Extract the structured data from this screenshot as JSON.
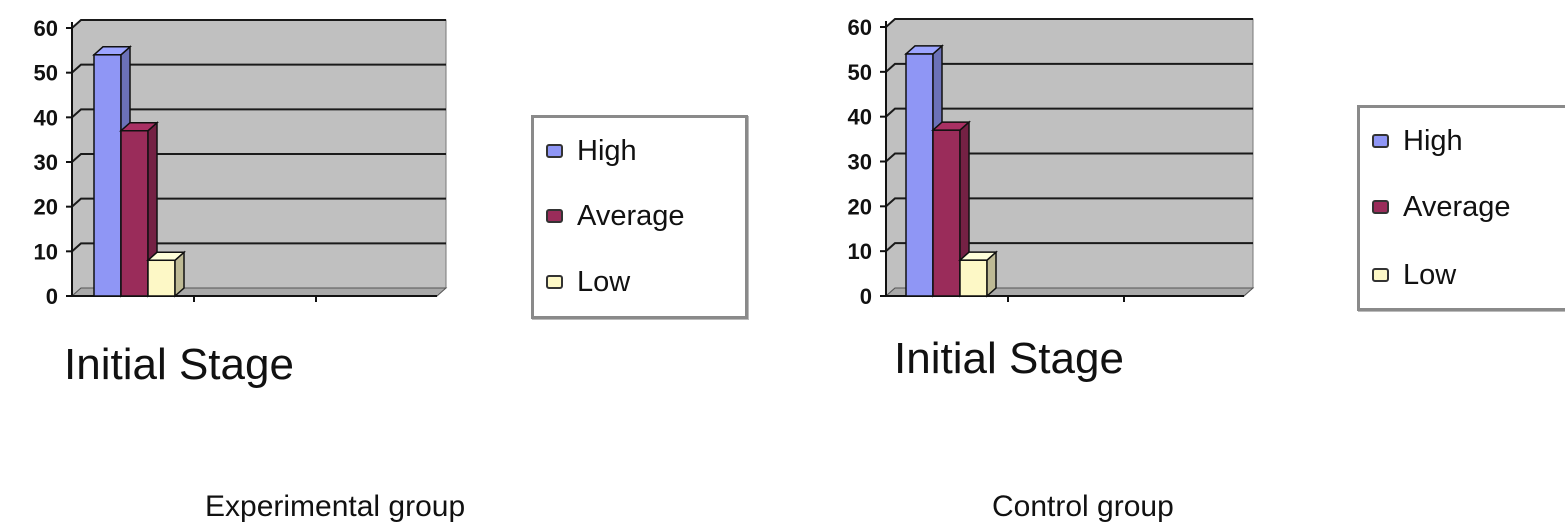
{
  "colors": {
    "plot_background": "#c0c0c0",
    "gridline": "#1a1a1a",
    "high": "#8f96f5",
    "average": "#9a2c5a",
    "low": "#fdf8c6"
  },
  "chart_data": [
    {
      "type": "bar",
      "style": "3d-clustered",
      "categories": [
        "Initial Stage"
      ],
      "series": [
        {
          "name": "High",
          "values": [
            54
          ]
        },
        {
          "name": "Average",
          "values": [
            37
          ]
        },
        {
          "name": "Low",
          "values": [
            8
          ]
        }
      ],
      "ylim": [
        0,
        60
      ],
      "yticks": [
        0,
        10,
        20,
        30,
        40,
        50,
        60
      ],
      "grid": true,
      "legend_position": "right",
      "caption": "Experimental group"
    },
    {
      "type": "bar",
      "style": "3d-clustered",
      "categories": [
        "Initial Stage"
      ],
      "series": [
        {
          "name": "High",
          "values": [
            54
          ]
        },
        {
          "name": "Average",
          "values": [
            37
          ]
        },
        {
          "name": "Low",
          "values": [
            8
          ]
        }
      ],
      "ylim": [
        0,
        60
      ],
      "yticks": [
        0,
        10,
        20,
        30,
        40,
        50,
        60
      ],
      "grid": true,
      "legend_position": "right",
      "caption": "Control group"
    }
  ]
}
